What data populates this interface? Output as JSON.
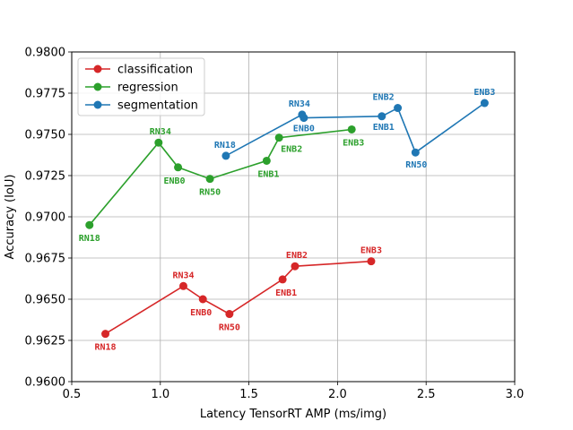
{
  "chart_data": {
    "type": "line",
    "xlabel": "Latency TensorRT AMP (ms/img)",
    "ylabel": "Accuracy (IoU)",
    "xlim": [
      0.5,
      3.0
    ],
    "ylim": [
      0.96,
      0.98
    ],
    "xticks": [
      "0.5",
      "1.0",
      "1.5",
      "2.0",
      "2.5",
      "3.0"
    ],
    "yticks": [
      "0.9600",
      "0.9625",
      "0.9650",
      "0.9675",
      "0.9700",
      "0.9725",
      "0.9750",
      "0.9775",
      "0.9800"
    ],
    "grid": true,
    "legend_position": "top-left",
    "series": [
      {
        "name": "classification",
        "color": "#d62728",
        "points": [
          {
            "label": "RN18",
            "x": 0.69,
            "y": 0.9629
          },
          {
            "label": "RN34",
            "x": 1.13,
            "y": 0.9658
          },
          {
            "label": "ENB0",
            "x": 1.24,
            "y": 0.965
          },
          {
            "label": "RN50",
            "x": 1.39,
            "y": 0.9641
          },
          {
            "label": "ENB1",
            "x": 1.69,
            "y": 0.9662
          },
          {
            "label": "ENB2",
            "x": 1.76,
            "y": 0.967
          },
          {
            "label": "ENB3",
            "x": 2.19,
            "y": 0.9673
          }
        ]
      },
      {
        "name": "regression",
        "color": "#2ca02c",
        "points": [
          {
            "label": "RN18",
            "x": 0.6,
            "y": 0.9695
          },
          {
            "label": "RN34",
            "x": 0.99,
            "y": 0.9745
          },
          {
            "label": "ENB0",
            "x": 1.1,
            "y": 0.973
          },
          {
            "label": "RN50",
            "x": 1.28,
            "y": 0.9723
          },
          {
            "label": "ENB1",
            "x": 1.6,
            "y": 0.9734
          },
          {
            "label": "ENB2",
            "x": 1.67,
            "y": 0.9748
          },
          {
            "label": "ENB3",
            "x": 2.08,
            "y": 0.9753
          }
        ]
      },
      {
        "name": "segmentation",
        "color": "#1f77b4",
        "points": [
          {
            "label": "RN18",
            "x": 1.37,
            "y": 0.9737
          },
          {
            "label": "RN34",
            "x": 1.8,
            "y": 0.9762
          },
          {
            "label": "ENB0",
            "x": 1.81,
            "y": 0.976
          },
          {
            "label": "ENB1",
            "x": 2.25,
            "y": 0.9761
          },
          {
            "label": "ENB2",
            "x": 2.34,
            "y": 0.9766
          },
          {
            "label": "RN50",
            "x": 2.44,
            "y": 0.9739
          },
          {
            "label": "ENB3",
            "x": 2.83,
            "y": 0.9769
          }
        ]
      }
    ]
  }
}
